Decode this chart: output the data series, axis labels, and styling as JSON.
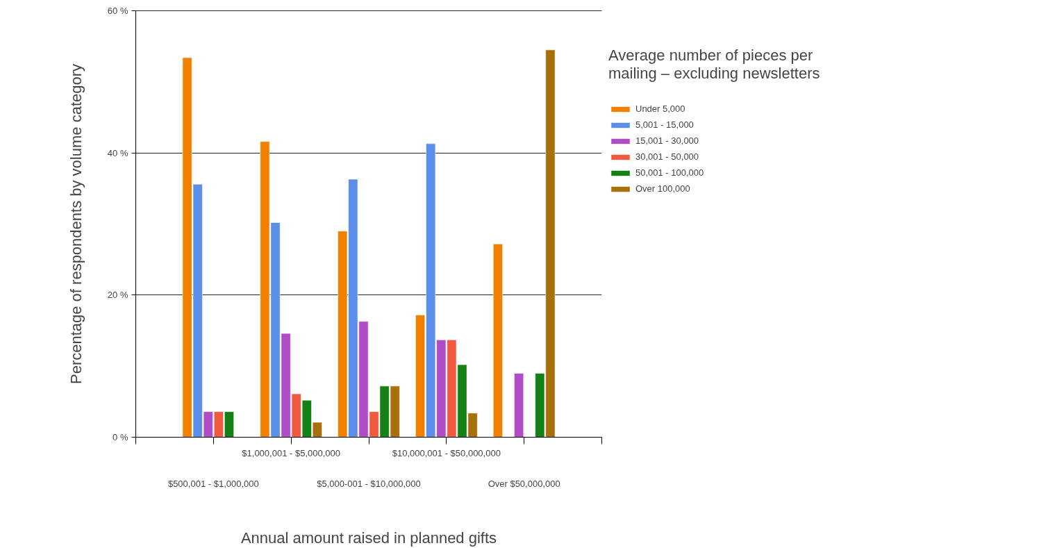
{
  "chart_data": {
    "type": "bar",
    "xlabel": "Annual amount raised in planned gifts",
    "ylabel": "Percentage of respondents by volume category",
    "legend_title": "Average number of pieces per mailing – excluding newsletters",
    "categories": [
      "$500,001 - $1,000,000",
      "$1,000,001 - $5,000,000",
      "$5,000-001 - $10,000,000",
      "$10,000,001 - $50,000,000",
      "Over $50,000,000"
    ],
    "series": [
      {
        "name": "Under 5,000",
        "color": "#f08000",
        "values": [
          53.4,
          41.6,
          29.0,
          17.2,
          27.2
        ]
      },
      {
        "name": "5,001 - 15,000",
        "color": "#5b8ee6",
        "values": [
          35.6,
          30.2,
          36.3,
          41.3,
          null
        ]
      },
      {
        "name": "15,001 - 30,000",
        "color": "#b04cc8",
        "values": [
          3.6,
          14.6,
          16.3,
          13.7,
          9.0
        ]
      },
      {
        "name": "30,001 - 50,000",
        "color": "#f05a40",
        "values": [
          3.6,
          6.1,
          3.6,
          13.7,
          null
        ]
      },
      {
        "name": "50,001 - 100,000",
        "color": "#158015",
        "values": [
          3.6,
          5.2,
          7.2,
          10.2,
          9.0
        ]
      },
      {
        "name": "Over 100,000",
        "color": "#a87008",
        "values": [
          null,
          2.1,
          7.2,
          3.4,
          54.5
        ]
      }
    ],
    "ylim": [
      0,
      60
    ],
    "yticks": [
      {
        "value": 0,
        "label": "0 %"
      },
      {
        "value": 20,
        "label": "20 %"
      },
      {
        "value": 40,
        "label": "40 %"
      },
      {
        "value": 60,
        "label": "60 %"
      }
    ],
    "grid": "y",
    "legend": "right"
  }
}
